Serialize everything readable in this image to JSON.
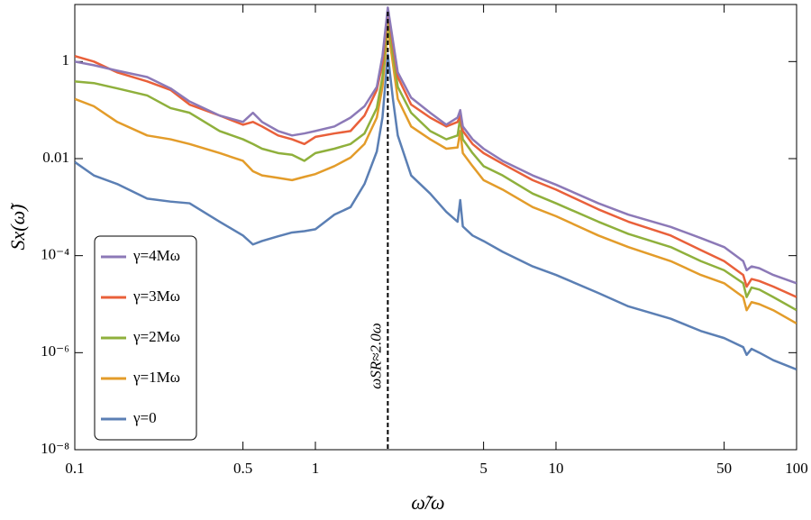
{
  "chart_data": {
    "type": "line",
    "xlabel": "ω̃/ω",
    "ylabel": "Sx(ω̃)",
    "xlog": true,
    "ylog": true,
    "xlim": [
      0.1,
      100
    ],
    "ylim": [
      1e-08,
      15
    ],
    "xticks": [
      0.1,
      0.5,
      1,
      5,
      10,
      50,
      100
    ],
    "yticks": [
      {
        "value": 1e-08,
        "label": "10⁻⁸"
      },
      {
        "value": 1e-06,
        "label": "10⁻⁶"
      },
      {
        "value": 0.0001,
        "label": "10⁻⁴"
      },
      0.01,
      1
    ],
    "annotation": "ωSR≈2.0ω",
    "annotation_x": 2,
    "legend_position": "lower left",
    "x": [
      0.1,
      0.12,
      0.15,
      0.2,
      0.25,
      0.3,
      0.4,
      0.5,
      0.55,
      0.6,
      0.7,
      0.8,
      0.9,
      1,
      1.2,
      1.4,
      1.6,
      1.8,
      1.9,
      2,
      2.1,
      2.2,
      2.5,
      3,
      3.5,
      3.9,
      4,
      4.1,
      4.5,
      5,
      6,
      8,
      10,
      15,
      20,
      30,
      40,
      50,
      60,
      62,
      65,
      70,
      80,
      100
    ],
    "series": [
      {
        "name": "γ=4Mω",
        "color": "#8c79b7",
        "values": [
          1,
          0.84,
          0.65,
          0.48,
          0.28,
          0.15,
          0.077,
          0.057,
          0.088,
          0.057,
          0.037,
          0.03,
          0.033,
          0.037,
          0.046,
          0.07,
          0.12,
          0.3,
          1.3,
          13,
          2.7,
          0.6,
          0.18,
          0.088,
          0.05,
          0.07,
          0.1,
          0.046,
          0.025,
          0.016,
          0.009,
          0.0045,
          0.0029,
          0.0012,
          0.0007,
          0.00039,
          0.00023,
          0.00015,
          7.7e-05,
          5e-05,
          6e-05,
          5.5e-05,
          4e-05,
          2.7e-05
        ]
      },
      {
        "name": "γ=3Mω",
        "color": "#e9603a",
        "values": [
          1.3,
          1,
          0.6,
          0.39,
          0.26,
          0.13,
          0.077,
          0.05,
          0.057,
          0.046,
          0.03,
          0.025,
          0.02,
          0.028,
          0.033,
          0.037,
          0.077,
          0.26,
          0.92,
          11,
          2.2,
          0.48,
          0.13,
          0.07,
          0.046,
          0.057,
          0.077,
          0.037,
          0.02,
          0.013,
          0.0078,
          0.0036,
          0.0023,
          0.0009,
          0.0005,
          0.00026,
          0.00013,
          7.7e-05,
          4e-05,
          2.3e-05,
          3.3e-05,
          3e-05,
          2.3e-05,
          1.4e-05
        ]
      },
      {
        "name": "γ=2Mω",
        "color": "#8fb03c",
        "values": [
          0.39,
          0.36,
          0.28,
          0.2,
          0.11,
          0.088,
          0.037,
          0.025,
          0.02,
          0.016,
          0.013,
          0.012,
          0.009,
          0.013,
          0.016,
          0.02,
          0.033,
          0.11,
          0.48,
          7.7,
          1.4,
          0.3,
          0.088,
          0.037,
          0.025,
          0.03,
          0.07,
          0.025,
          0.013,
          0.007,
          0.0045,
          0.0019,
          0.0012,
          0.0005,
          0.00028,
          0.00015,
          7.7e-05,
          5e-05,
          2.7e-05,
          1.4e-05,
          2.2e-05,
          2e-05,
          1.4e-05,
          7.5e-06
        ]
      },
      {
        "name": "γ=1Mω",
        "color": "#e39c2a",
        "values": [
          0.17,
          0.12,
          0.057,
          0.03,
          0.025,
          0.02,
          0.013,
          0.009,
          0.0055,
          0.0045,
          0.004,
          0.0036,
          0.0042,
          0.0048,
          0.007,
          0.0105,
          0.02,
          0.07,
          0.3,
          5,
          0.9,
          0.17,
          0.046,
          0.025,
          0.016,
          0.017,
          0.037,
          0.013,
          0.007,
          0.0036,
          0.0023,
          0.001,
          0.00065,
          0.00026,
          0.00015,
          7.7e-05,
          4e-05,
          2.7e-05,
          1.4e-05,
          7.5e-06,
          1.1e-05,
          1e-05,
          7.5e-06,
          4e-06
        ]
      },
      {
        "name": "γ=0",
        "color": "#5b7fb4",
        "values": [
          0.0085,
          0.0045,
          0.003,
          0.0015,
          0.0013,
          0.0012,
          0.0005,
          0.00026,
          0.00017,
          0.0002,
          0.00025,
          0.0003,
          0.00032,
          0.00035,
          0.0007,
          0.001,
          0.003,
          0.014,
          0.07,
          1.4,
          0.17,
          0.03,
          0.0045,
          0.0019,
          0.0008,
          0.0005,
          0.0014,
          0.0004,
          0.00026,
          0.0002,
          0.00012,
          6e-05,
          4e-05,
          1.7e-05,
          9e-06,
          5e-06,
          2.8e-06,
          2e-06,
          1.3e-06,
          9e-07,
          1.2e-06,
          1e-06,
          7e-07,
          4.5e-07
        ]
      }
    ]
  }
}
